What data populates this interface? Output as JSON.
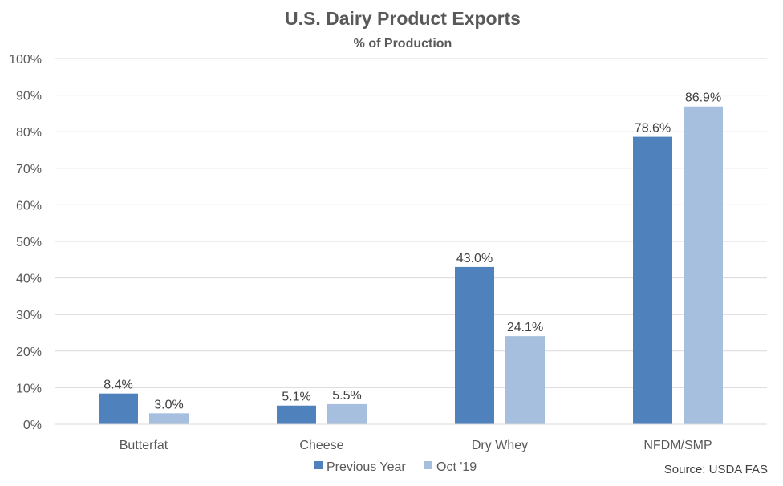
{
  "chart_data": {
    "type": "bar",
    "title": "U.S. Dairy Product Exports",
    "subtitle": "% of Production",
    "categories": [
      "Butterfat",
      "Cheese",
      "Dry Whey",
      "NFDM/SMP"
    ],
    "series": [
      {
        "name": "Previous Year",
        "color": "#4f81bd",
        "values": [
          8.4,
          5.1,
          43.0,
          78.6
        ],
        "labels": [
          "8.4%",
          "5.1%",
          "43.0%",
          "78.6%"
        ]
      },
      {
        "name": "Oct '19",
        "color": "#a7bfde",
        "values": [
          3.0,
          5.5,
          24.1,
          86.9
        ],
        "labels": [
          "3.0%",
          "5.5%",
          "24.1%",
          "86.9%"
        ]
      }
    ],
    "ylim": [
      0,
      100
    ],
    "yticks": [
      0,
      10,
      20,
      30,
      40,
      50,
      60,
      70,
      80,
      90,
      100
    ],
    "ytick_labels": [
      "0%",
      "10%",
      "20%",
      "30%",
      "40%",
      "50%",
      "60%",
      "70%",
      "80%",
      "90%",
      "100%"
    ],
    "grid": true,
    "legend_position": "bottom-center",
    "source": "Source: USDA FAS"
  }
}
